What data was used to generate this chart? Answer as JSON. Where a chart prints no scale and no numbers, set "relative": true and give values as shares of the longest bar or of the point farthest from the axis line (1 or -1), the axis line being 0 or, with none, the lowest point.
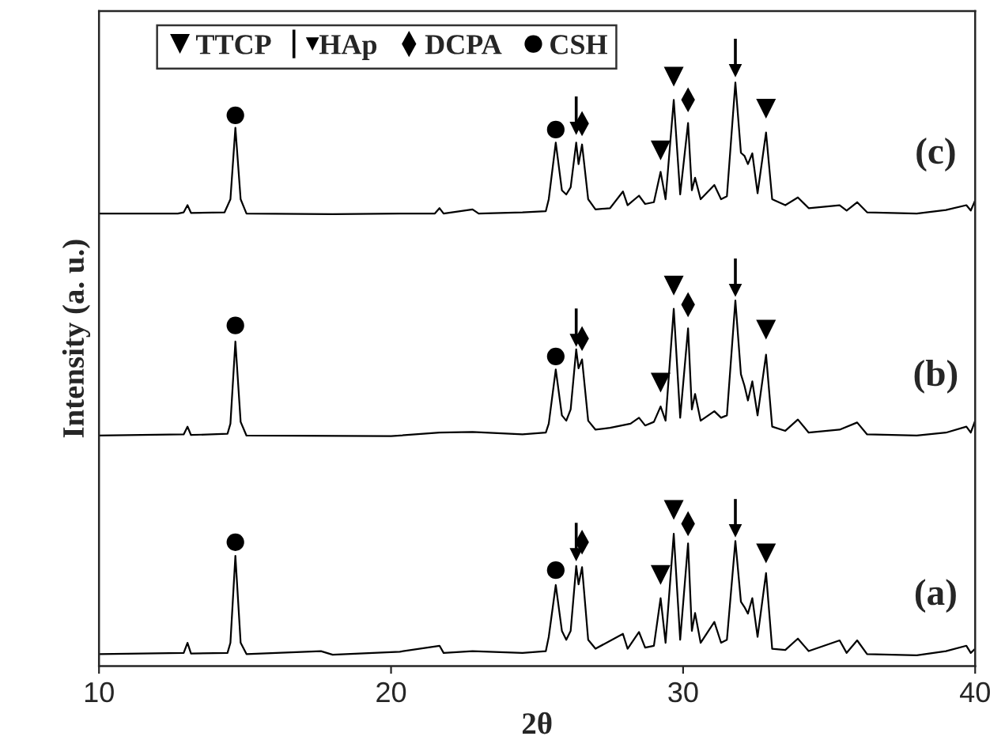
{
  "chart_data": {
    "type": "line",
    "relative": true,
    "xlabel": "2θ",
    "ylabel": "Intensity (a. u.)",
    "xlim": [
      10,
      40
    ],
    "xticks": [
      10,
      20,
      30,
      40
    ],
    "grid": false,
    "legend": "top left",
    "series": [
      {
        "color": "#000000",
        "x": [
          10,
          12.7,
          12.9,
          13.03,
          13.15,
          14.3,
          14.5,
          14.67,
          14.85,
          15.05,
          18,
          20.3,
          21.5,
          21.66,
          21.8,
          22.79,
          23,
          24.5,
          25.3,
          25.4,
          25.64,
          25.85,
          26.0,
          26.15,
          26.34,
          26.42,
          26.54,
          26.75,
          27.0,
          27.5,
          27.94,
          28.1,
          28.49,
          28.7,
          29.0,
          29.23,
          29.4,
          29.68,
          29.9,
          30.17,
          30.3,
          30.41,
          30.6,
          31.07,
          31.3,
          31.5,
          31.79,
          31.98,
          32.1,
          32.22,
          32.37,
          32.55,
          32.84,
          33.05,
          33.5,
          33.93,
          34.3,
          35.36,
          35.6,
          35.96,
          36.3,
          38,
          39,
          39.7,
          39.85,
          40
        ],
        "values": [
          0.76,
          0.76,
          0.762,
          0.774,
          0.761,
          0.762,
          0.784,
          0.904,
          0.784,
          0.76,
          0.759,
          0.76,
          0.76,
          0.769,
          0.76,
          0.767,
          0.76,
          0.762,
          0.764,
          0.784,
          0.879,
          0.799,
          0.792,
          0.804,
          0.879,
          0.843,
          0.876,
          0.784,
          0.767,
          0.769,
          0.797,
          0.774,
          0.79,
          0.776,
          0.779,
          0.83,
          0.784,
          0.951,
          0.792,
          0.912,
          0.799,
          0.82,
          0.784,
          0.808,
          0.784,
          0.789,
          0.98,
          0.862,
          0.857,
          0.843,
          0.861,
          0.794,
          0.896,
          0.784,
          0.774,
          0.787,
          0.769,
          0.774,
          0.765,
          0.779,
          0.762,
          0.76,
          0.766,
          0.774,
          0.765,
          0.782
        ]
      },
      {
        "color": "#000000",
        "x": [
          10,
          12.9,
          13.03,
          13.15,
          14.4,
          14.5,
          14.67,
          14.85,
          15.05,
          20,
          21.66,
          22.79,
          24.5,
          25.3,
          25.4,
          25.64,
          25.85,
          26.0,
          26.15,
          26.34,
          26.42,
          26.54,
          26.75,
          27.0,
          27.5,
          28.2,
          28.49,
          28.7,
          29.0,
          29.23,
          29.4,
          29.68,
          29.9,
          30.17,
          30.3,
          30.41,
          30.6,
          31.07,
          31.3,
          31.5,
          31.79,
          31.98,
          32.1,
          32.22,
          32.37,
          32.55,
          32.84,
          33.05,
          33.5,
          33.93,
          34.3,
          35.36,
          35.96,
          36.3,
          38,
          39,
          39.7,
          39.85,
          40
        ],
        "values": [
          0.387,
          0.389,
          0.402,
          0.388,
          0.39,
          0.407,
          0.545,
          0.41,
          0.387,
          0.386,
          0.392,
          0.393,
          0.389,
          0.392,
          0.407,
          0.498,
          0.421,
          0.412,
          0.431,
          0.532,
          0.5,
          0.515,
          0.412,
          0.397,
          0.4,
          0.407,
          0.417,
          0.404,
          0.41,
          0.436,
          0.412,
          0.6,
          0.417,
          0.567,
          0.431,
          0.457,
          0.412,
          0.428,
          0.417,
          0.421,
          0.614,
          0.49,
          0.471,
          0.446,
          0.478,
          0.421,
          0.523,
          0.402,
          0.395,
          0.414,
          0.392,
          0.397,
          0.409,
          0.389,
          0.387,
          0.392,
          0.402,
          0.392,
          0.412
        ]
      },
      {
        "color": "#000000",
        "x": [
          10,
          12.9,
          13.03,
          13.15,
          14.4,
          14.5,
          14.67,
          14.85,
          15.05,
          17.6,
          18,
          20.3,
          21.66,
          21.8,
          22.79,
          24.5,
          25.3,
          25.4,
          25.64,
          25.85,
          26.0,
          26.15,
          26.34,
          26.42,
          26.54,
          26.75,
          27.0,
          27.94,
          28.1,
          28.49,
          28.7,
          29.0,
          29.23,
          29.4,
          29.68,
          29.9,
          30.17,
          30.3,
          30.41,
          30.6,
          31.07,
          31.3,
          31.5,
          31.79,
          31.98,
          32.1,
          32.22,
          32.37,
          32.55,
          32.84,
          33.05,
          33.5,
          33.93,
          34.3,
          35.36,
          35.6,
          35.96,
          36.3,
          38,
          39,
          39.7,
          39.85,
          40
        ],
        "values": [
          0.02,
          0.022,
          0.039,
          0.021,
          0.022,
          0.039,
          0.185,
          0.039,
          0.02,
          0.025,
          0.019,
          0.024,
          0.034,
          0.022,
          0.025,
          0.022,
          0.025,
          0.049,
          0.136,
          0.059,
          0.044,
          0.059,
          0.168,
          0.137,
          0.166,
          0.044,
          0.029,
          0.054,
          0.029,
          0.057,
          0.031,
          0.034,
          0.114,
          0.039,
          0.222,
          0.044,
          0.206,
          0.059,
          0.089,
          0.039,
          0.074,
          0.039,
          0.044,
          0.21,
          0.108,
          0.099,
          0.088,
          0.114,
          0.049,
          0.156,
          0.029,
          0.027,
          0.046,
          0.025,
          0.043,
          0.022,
          0.043,
          0.02,
          0.018,
          0.025,
          0.034,
          0.022,
          0.029
        ]
      },
      {
        "type": "scatter",
        "name": "TTCP",
        "marker": "triangle",
        "color": "#000000",
        "x": [
          29.23,
          29.68,
          32.84,
          29.23,
          29.68,
          32.84,
          29.23,
          29.68,
          32.84
        ],
        "values": [
          0.866,
          0.99,
          0.936,
          0.476,
          0.639,
          0.565,
          0.153,
          0.262,
          0.189
        ]
      },
      {
        "type": "scatter",
        "name": "HAp",
        "color": "#000000",
        "x": [
          26.34,
          31.79,
          26.34,
          31.79,
          26.34,
          31.79
        ],
        "values": [
          0.903,
          1.0,
          0.547,
          0.631,
          0.187,
          0.227
        ]
      },
      {
        "type": "scatter",
        "name": "DCPA",
        "marker": "diamond",
        "color": "#000000",
        "x": [
          26.54,
          30.17,
          26.54,
          30.17,
          26.54,
          30.17
        ],
        "values": [
          0.911,
          0.951,
          0.55,
          0.607,
          0.208,
          0.239
        ]
      },
      {
        "type": "scatter",
        "name": "CSH",
        "marker": "circle",
        "color": "#000000",
        "x": [
          14.67,
          25.64,
          14.67,
          25.64,
          14.67,
          25.64
        ],
        "values": [
          0.925,
          0.901,
          0.572,
          0.52,
          0.208,
          0.161
        ]
      }
    ],
    "annotations": [
      "(c)",
      "(b)",
      "(a)"
    ]
  }
}
